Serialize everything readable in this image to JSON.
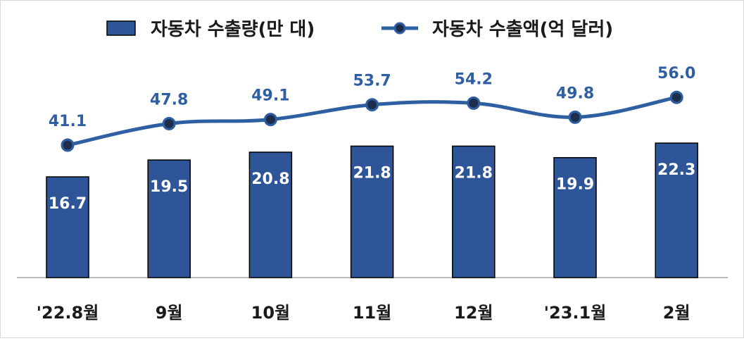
{
  "chart_data": {
    "type": "bar",
    "categories": [
      "'22.8월",
      "9월",
      "10월",
      "11월",
      "12월",
      "'23.1월",
      "2월"
    ],
    "series": [
      {
        "name": "자동차 수출량(만 대)",
        "type": "bar",
        "values": [
          16.7,
          19.5,
          20.8,
          21.8,
          21.8,
          19.9,
          22.3
        ],
        "labels": [
          "16.7",
          "19.5",
          "20.8",
          "21.8",
          "21.8",
          "19.9",
          "22.3"
        ]
      },
      {
        "name": "자동차 수출액(억 달러)",
        "type": "line",
        "values": [
          41.1,
          47.8,
          49.1,
          53.7,
          54.2,
          49.8,
          56.0
        ],
        "labels": [
          "41.1",
          "47.8",
          "49.1",
          "53.7",
          "54.2",
          "49.8",
          "56.0"
        ]
      }
    ],
    "legend": "top-center",
    "grid": false
  },
  "colors": {
    "bar_fill": "#2e5597",
    "bar_stroke": "#000000",
    "line": "#2e5fa3",
    "marker_fill": "#1f2d4d",
    "marker_stroke": "#2e5fa3",
    "line_label": "#2e5fa3",
    "axis": "#a6a6a6"
  }
}
